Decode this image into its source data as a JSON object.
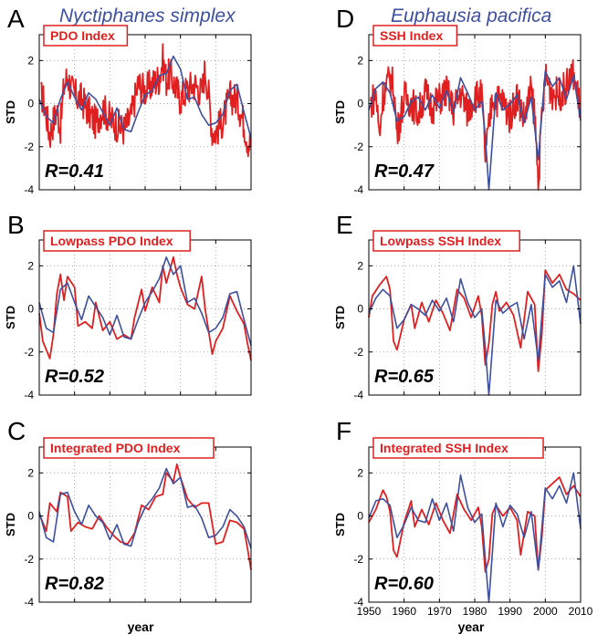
{
  "figure": {
    "colors": {
      "red": "#e02020",
      "blue": "#3d4f9f",
      "axis": "#000000",
      "grid": "#9a9a9a"
    },
    "column_titles": [
      "Nyctiphanes simplex",
      "Euphausia pacifica"
    ],
    "xlabel": "year"
  },
  "chart_data": [
    {
      "type": "line",
      "panel": "A",
      "title": "PDO Index",
      "ylabel": "STD",
      "xlabel": "",
      "xlim": [
        1950,
        2010
      ],
      "ylim": [
        -4,
        3.2
      ],
      "yticks": [
        2,
        0,
        -2,
        -4
      ],
      "xticks": [
        1950,
        1960,
        1970,
        1980,
        1990,
        2000,
        2010
      ],
      "show_xticklabels": false,
      "r_label": "R=0.41",
      "grid": true,
      "noisy_red": true,
      "series": [
        {
          "role": "red",
          "x": [
            1951,
            1952,
            1953,
            1954,
            1955,
            1956,
            1957,
            1958,
            1959,
            1960,
            1962,
            1964,
            1966,
            1968,
            1970,
            1972,
            1974,
            1976,
            1978,
            1980,
            1982,
            1984,
            1985,
            1986,
            1987,
            1988,
            1990,
            1992,
            1994,
            1996,
            1997,
            1998,
            1999,
            2000,
            2002,
            2004,
            2006,
            2008,
            2009,
            2010
          ],
          "values": [
            0.3,
            -0.5,
            -1.5,
            -0.8,
            -0.3,
            -1.1,
            0.8,
            1.3,
            0.7,
            0.4,
            0.2,
            -0.4,
            -0.9,
            -0.2,
            -0.7,
            -1.0,
            -1.2,
            -0.6,
            0.9,
            0.6,
            0.9,
            1.2,
            2.0,
            1.1,
            1.4,
            1.0,
            0.2,
            0.7,
            0.9,
            0.5,
            1.6,
            0.4,
            -1.3,
            -1.3,
            -0.8,
            0.3,
            0.2,
            -0.9,
            -1.7,
            -1.9
          ]
        },
        {
          "role": "blue",
          "x": [
            1950,
            1952,
            1954,
            1956,
            1958,
            1960,
            1962,
            1964,
            1966,
            1968,
            1970,
            1972,
            1974,
            1976,
            1978,
            1980,
            1982,
            1984,
            1986,
            1988,
            1990,
            1992,
            1994,
            1996,
            1998,
            2000,
            2002,
            2004,
            2006,
            2008,
            2010
          ],
          "values": [
            0.2,
            -0.6,
            -0.9,
            0.2,
            1.0,
            0.3,
            -0.3,
            0.5,
            0.2,
            -0.4,
            -1.0,
            -0.2,
            -1.2,
            -1.3,
            -0.4,
            0.4,
            0.6,
            1.3,
            1.4,
            2.2,
            1.6,
            0.2,
            0.3,
            -0.5,
            -1.0,
            -0.9,
            -0.5,
            0.6,
            0.9,
            -0.4,
            -1.6
          ]
        }
      ]
    },
    {
      "type": "line",
      "panel": "B",
      "title": "Lowpass PDO Index",
      "ylabel": "STD",
      "xlabel": "",
      "xlim": [
        1950,
        2010
      ],
      "ylim": [
        -4,
        3.2
      ],
      "yticks": [
        2,
        0,
        -2,
        -4
      ],
      "xticks": [
        1950,
        1960,
        1970,
        1980,
        1990,
        2000,
        2010
      ],
      "show_xticklabels": false,
      "r_label": "R=0.52",
      "grid": true,
      "series": [
        {
          "role": "red",
          "x": [
            1950,
            1951,
            1953,
            1954,
            1955,
            1956,
            1957,
            1958,
            1960,
            1961,
            1963,
            1965,
            1966,
            1968,
            1970,
            1972,
            1974,
            1976,
            1977,
            1979,
            1980,
            1982,
            1984,
            1985,
            1986,
            1987,
            1988,
            1989,
            1990,
            1991,
            1992,
            1994,
            1996,
            1997,
            1999,
            2000,
            2002,
            2004,
            2006,
            2008,
            2009,
            2010
          ],
          "values": [
            -0.2,
            -1.5,
            -2.3,
            -1.2,
            0.7,
            1.6,
            0.4,
            1.5,
            1.0,
            -0.8,
            -0.6,
            -0.9,
            0.3,
            -1.0,
            -0.6,
            -1.4,
            -1.2,
            -1.4,
            -0.4,
            0.9,
            -0.1,
            1.0,
            0.3,
            2.0,
            1.2,
            1.8,
            2.4,
            1.6,
            1.0,
            0.6,
            0.2,
            0.0,
            1.5,
            0.0,
            -2.1,
            -1.5,
            -0.9,
            0.6,
            -0.1,
            -0.7,
            -1.6,
            -2.4
          ]
        },
        {
          "role": "blue",
          "x": [
            1950,
            1952,
            1954,
            1956,
            1958,
            1960,
            1962,
            1964,
            1966,
            1968,
            1970,
            1972,
            1974,
            1976,
            1978,
            1980,
            1982,
            1984,
            1986,
            1988,
            1990,
            1992,
            1994,
            1996,
            1998,
            2000,
            2002,
            2004,
            2006,
            2008,
            2010
          ],
          "values": [
            0.3,
            -0.9,
            -1.1,
            0.9,
            1.2,
            0.3,
            -0.5,
            0.6,
            0.1,
            -0.4,
            -1.2,
            -0.3,
            -1.3,
            -1.4,
            -0.5,
            0.3,
            0.8,
            1.4,
            2.4,
            1.6,
            2.0,
            0.3,
            0.5,
            -0.2,
            -1.1,
            -0.9,
            -0.4,
            0.7,
            0.8,
            -0.5,
            -1.7
          ]
        }
      ]
    },
    {
      "type": "line",
      "panel": "C",
      "title": "Integrated PDO Index",
      "ylabel": "STD",
      "xlabel": "",
      "xlim": [
        1950,
        2010
      ],
      "ylim": [
        -4,
        3.2
      ],
      "yticks": [
        2,
        0,
        -2,
        -4
      ],
      "xticks": [
        1950,
        1960,
        1970,
        1980,
        1990,
        2000,
        2010
      ],
      "show_xticklabels": false,
      "r_label": "R=0.82",
      "grid": true,
      "series": [
        {
          "role": "red",
          "x": [
            1950,
            1952,
            1953,
            1955,
            1956,
            1958,
            1959,
            1961,
            1963,
            1965,
            1967,
            1969,
            1971,
            1973,
            1975,
            1977,
            1979,
            1981,
            1983,
            1985,
            1986,
            1988,
            1989,
            1990,
            1992,
            1994,
            1996,
            1998,
            2000,
            2002,
            2004,
            2006,
            2008,
            2009,
            2010
          ],
          "values": [
            0.1,
            -0.7,
            0.6,
            0.2,
            1.1,
            0.9,
            -0.7,
            -0.3,
            -0.5,
            -0.6,
            0.0,
            -0.5,
            -0.9,
            -1.2,
            -1.3,
            -0.8,
            0.5,
            0.3,
            0.9,
            1.0,
            2.0,
            1.6,
            2.4,
            1.8,
            0.8,
            0.4,
            0.6,
            0.6,
            -1.3,
            -1.2,
            -0.2,
            -0.3,
            -0.6,
            -1.5,
            -2.5
          ]
        },
        {
          "role": "blue",
          "x": [
            1950,
            1952,
            1954,
            1956,
            1958,
            1960,
            1962,
            1964,
            1966,
            1968,
            1970,
            1972,
            1974,
            1976,
            1978,
            1980,
            1982,
            1984,
            1986,
            1988,
            1990,
            1992,
            1994,
            1996,
            1998,
            2000,
            2002,
            2004,
            2006,
            2008,
            2010
          ],
          "values": [
            0.2,
            -1.0,
            -1.2,
            1.0,
            1.1,
            0.2,
            -0.4,
            0.5,
            0.0,
            -0.3,
            -1.1,
            -0.4,
            -1.3,
            -1.4,
            -0.3,
            0.4,
            0.8,
            1.3,
            2.2,
            1.5,
            1.8,
            0.4,
            0.5,
            -0.1,
            -1.0,
            -0.9,
            -0.5,
            0.3,
            0.0,
            -0.5,
            -1.5
          ]
        }
      ]
    },
    {
      "type": "line",
      "panel": "D",
      "title": "SSH Index",
      "ylabel": "STD",
      "xlabel": "",
      "xlim": [
        1950,
        2010
      ],
      "ylim": [
        -4,
        3.2
      ],
      "yticks": [
        2,
        0,
        -2,
        -4
      ],
      "xticks": [
        1950,
        1960,
        1970,
        1980,
        1990,
        2000,
        2010
      ],
      "show_xticklabels": false,
      "r_label": "R=0.47",
      "grid": true,
      "noisy_red": true,
      "series": [
        {
          "role": "red",
          "x": [
            1950,
            1952,
            1953,
            1954,
            1956,
            1957,
            1958,
            1960,
            1962,
            1964,
            1966,
            1968,
            1970,
            1972,
            1974,
            1976,
            1978,
            1980,
            1982,
            1983,
            1984,
            1985,
            1986,
            1988,
            1990,
            1992,
            1994,
            1996,
            1997,
            1998,
            1999,
            2000,
            2002,
            2004,
            2006,
            2008,
            2010
          ],
          "values": [
            -0.2,
            0.5,
            -1.5,
            0.4,
            1.2,
            0.8,
            -1.4,
            0.3,
            0.1,
            -0.5,
            0.5,
            -0.2,
            0.2,
            0.6,
            -0.3,
            0.5,
            -0.4,
            0.4,
            0.3,
            -2.4,
            -1.2,
            0.4,
            0.2,
            0.1,
            -0.6,
            0.4,
            -0.7,
            0.6,
            -0.5,
            -3.7,
            -0.8,
            1.2,
            0.5,
            0.4,
            0.8,
            1.4,
            -0.3
          ]
        },
        {
          "role": "blue",
          "x": [
            1950,
            1952,
            1954,
            1956,
            1958,
            1960,
            1962,
            1964,
            1966,
            1968,
            1970,
            1972,
            1974,
            1976,
            1978,
            1980,
            1982,
            1983,
            1984,
            1986,
            1988,
            1990,
            1992,
            1994,
            1996,
            1998,
            2000,
            2002,
            2004,
            2006,
            2008,
            2010
          ],
          "values": [
            -0.3,
            0.7,
            1.0,
            0.5,
            -0.8,
            -0.6,
            0.1,
            0.3,
            -0.3,
            0.4,
            -0.2,
            0.6,
            -0.4,
            1.2,
            0.5,
            -0.3,
            0.1,
            -1.5,
            -4.0,
            0.5,
            -0.3,
            0.0,
            0.4,
            -0.9,
            0.3,
            -2.6,
            1.5,
            0.8,
            1.2,
            0.2,
            1.3,
            -0.8
          ]
        }
      ]
    },
    {
      "type": "line",
      "panel": "E",
      "title": "Lowpass SSH Index",
      "ylabel": "STD",
      "xlabel": "",
      "xlim": [
        1950,
        2010
      ],
      "ylim": [
        -4,
        3.2
      ],
      "yticks": [
        2,
        0,
        -2,
        -4
      ],
      "xticks": [
        1950,
        1960,
        1970,
        1980,
        1990,
        2000,
        2010
      ],
      "show_xticklabels": false,
      "r_label": "R=0.65",
      "grid": true,
      "series": [
        {
          "role": "red",
          "x": [
            1950,
            1951,
            1953,
            1955,
            1956,
            1957,
            1958,
            1960,
            1962,
            1963,
            1965,
            1967,
            1969,
            1971,
            1973,
            1975,
            1977,
            1979,
            1981,
            1982,
            1983,
            1984,
            1985,
            1986,
            1987,
            1989,
            1991,
            1993,
            1995,
            1997,
            1998,
            1999,
            2000,
            2002,
            2004,
            2006,
            2008,
            2010
          ],
          "values": [
            -0.4,
            0.6,
            1.1,
            1.5,
            0.9,
            -1.5,
            -1.9,
            -0.5,
            0.2,
            -0.9,
            0.3,
            -0.6,
            0.4,
            -0.2,
            -1.0,
            0.9,
            0.5,
            -0.4,
            0.6,
            -0.3,
            -2.6,
            -1.6,
            0.2,
            0.8,
            -0.1,
            0.3,
            -0.3,
            -1.8,
            0.8,
            0.2,
            -2.9,
            -1.2,
            1.8,
            1.2,
            1.6,
            0.9,
            0.7,
            0.4
          ]
        },
        {
          "role": "blue",
          "x": [
            1950,
            1952,
            1954,
            1956,
            1958,
            1960,
            1962,
            1964,
            1966,
            1968,
            1970,
            1972,
            1974,
            1976,
            1978,
            1980,
            1982,
            1983,
            1984,
            1986,
            1988,
            1990,
            1992,
            1994,
            1996,
            1998,
            2000,
            2002,
            2004,
            2006,
            2008,
            2010
          ],
          "values": [
            -0.2,
            0.5,
            0.9,
            0.6,
            -0.9,
            -0.5,
            0.2,
            0.0,
            -0.3,
            0.4,
            -0.1,
            0.5,
            -0.6,
            1.4,
            0.3,
            -0.4,
            0.0,
            -1.8,
            -4.0,
            0.4,
            -0.2,
            0.1,
            0.3,
            -1.4,
            0.2,
            -2.4,
            1.6,
            1.0,
            1.3,
            0.3,
            2.0,
            -0.7
          ]
        }
      ]
    },
    {
      "type": "line",
      "panel": "F",
      "title": "Integrated SSH Index",
      "ylabel": "STD",
      "xlabel": "year",
      "xlim": [
        1950,
        2010
      ],
      "ylim": [
        -4,
        3.2
      ],
      "yticks": [
        2,
        0,
        -2,
        -4
      ],
      "xticks": [
        1950,
        1960,
        1970,
        1980,
        1990,
        2000,
        2010
      ],
      "show_xticklabels": true,
      "r_label": "R=0.60",
      "grid": true,
      "series": [
        {
          "role": "red",
          "x": [
            1950,
            1952,
            1954,
            1955,
            1956,
            1957,
            1958,
            1960,
            1962,
            1963,
            1965,
            1967,
            1969,
            1971,
            1973,
            1975,
            1977,
            1979,
            1981,
            1982,
            1983,
            1984,
            1985,
            1986,
            1988,
            1990,
            1992,
            1993,
            1995,
            1997,
            1998,
            1999,
            2000,
            2002,
            2004,
            2006,
            2008,
            2010
          ],
          "values": [
            -0.3,
            0.3,
            1.2,
            0.9,
            0.2,
            -1.6,
            -1.9,
            -0.3,
            0.7,
            -0.5,
            0.3,
            -0.4,
            0.6,
            -0.2,
            -0.8,
            1.0,
            0.3,
            -0.2,
            0.4,
            -0.5,
            -2.6,
            -2.0,
            0.1,
            0.5,
            0.0,
            0.4,
            -0.2,
            -1.8,
            0.2,
            0.0,
            -2.5,
            -1.0,
            1.2,
            1.5,
            1.8,
            1.0,
            1.4,
            0.9
          ]
        },
        {
          "role": "blue",
          "x": [
            1950,
            1952,
            1954,
            1956,
            1958,
            1960,
            1962,
            1964,
            1966,
            1968,
            1970,
            1972,
            1974,
            1976,
            1978,
            1980,
            1982,
            1983,
            1984,
            1986,
            1988,
            1990,
            1992,
            1994,
            1996,
            1998,
            2000,
            2002,
            2004,
            2006,
            2008,
            2010
          ],
          "values": [
            -0.1,
            0.7,
            0.8,
            0.5,
            -1.0,
            -0.4,
            0.4,
            -0.2,
            -0.3,
            0.8,
            -0.2,
            0.6,
            -0.7,
            1.9,
            0.4,
            -0.3,
            0.1,
            -2.0,
            -4.0,
            0.6,
            -0.5,
            0.5,
            0.1,
            -1.0,
            0.2,
            -2.5,
            1.3,
            0.8,
            1.4,
            0.6,
            2.0,
            -0.6
          ]
        }
      ]
    }
  ]
}
